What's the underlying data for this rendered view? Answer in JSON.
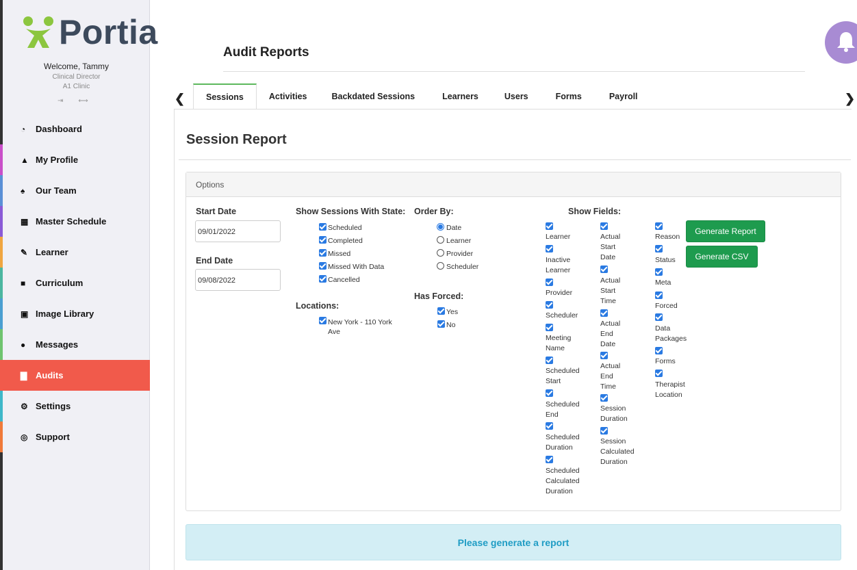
{
  "sidebar": {
    "logo_text": "Portia",
    "welcome": "Welcome, Tammy",
    "role": "Clinical Director",
    "clinic": "A1 Clinic",
    "items": [
      {
        "label": "Dashboard",
        "icon": "dashboard-icon",
        "accent": "#333333"
      },
      {
        "label": "My Profile",
        "icon": "user-icon",
        "accent": "#c94fc9"
      },
      {
        "label": "Our Team",
        "icon": "team-icon",
        "accent": "#5a8fd6"
      },
      {
        "label": "Master Schedule",
        "icon": "calendar-icon",
        "accent": "#8a5ad6"
      },
      {
        "label": "Learner",
        "icon": "pencil-icon",
        "accent": "#f0a640"
      },
      {
        "label": "Curriculum",
        "icon": "book-icon",
        "accent": "#4cb6a0"
      },
      {
        "label": "Image Library",
        "icon": "image-icon",
        "accent": "#4b9fd1"
      },
      {
        "label": "Messages",
        "icon": "chat-icon",
        "accent": "#6fc46f"
      },
      {
        "label": "Audits",
        "icon": "chart-icon",
        "accent": "#f15a4b"
      },
      {
        "label": "Settings",
        "icon": "gear-icon",
        "accent": "#3fb7c9"
      },
      {
        "label": "Support",
        "icon": "lifebuoy-icon",
        "accent": "#f07a3a"
      }
    ]
  },
  "header": {
    "title": "Audit Reports"
  },
  "tabs": [
    {
      "label": "Sessions",
      "active": true
    },
    {
      "label": "Activities"
    },
    {
      "label": "Backdated Sessions"
    },
    {
      "label": "Learners"
    },
    {
      "label": "Users"
    },
    {
      "label": "Forms"
    },
    {
      "label": "Payroll"
    }
  ],
  "report": {
    "title": "Session Report",
    "panel_title": "Options",
    "start_date_label": "Start Date",
    "start_date": "09/01/2022",
    "end_date_label": "End Date",
    "end_date": "09/08/2022",
    "states_label": "Show Sessions With State:",
    "states": [
      "Scheduled",
      "Completed",
      "Missed",
      "Missed With Data",
      "Cancelled"
    ],
    "locations_label": "Locations:",
    "location": "New York - 110 York Ave",
    "order_label": "Order By:",
    "order_options": [
      "Date",
      "Learner",
      "Provider",
      "Scheduler"
    ],
    "order_selected": "Date",
    "forced_label": "Has Forced:",
    "forced_options": [
      "Yes",
      "No"
    ],
    "fields_label": "Show Fields:",
    "fields_col1": [
      "Learner",
      "Inactive Learner",
      "Provider",
      "Scheduler",
      "Meeting Name",
      "Scheduled Start",
      "Scheduled End",
      "Scheduled Duration",
      "Scheduled Calculated Duration"
    ],
    "fields_col2": [
      "Actual Start Date",
      "Actual Start Time",
      "Actual End Date",
      "Actual End Time",
      "Session Duration",
      "Session Calculated Duration"
    ],
    "fields_col3": [
      "Reason",
      "Status",
      "Meta",
      "Forced",
      "Data Packages",
      "Forms",
      "Therapist Location"
    ],
    "generate_report": "Generate Report",
    "generate_csv": "Generate CSV",
    "alert": "Please generate a report"
  }
}
